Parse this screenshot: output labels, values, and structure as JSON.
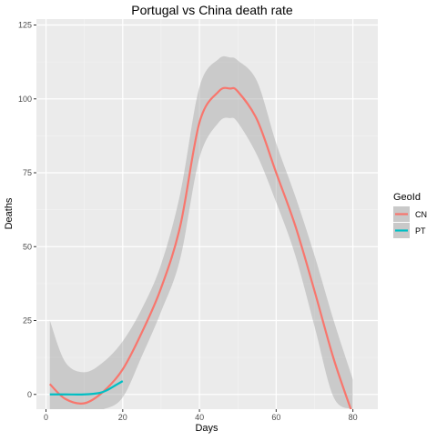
{
  "chart_data": {
    "type": "line",
    "title": "Portugal vs China death rate",
    "xlabel": "Days",
    "ylabel": "Deaths",
    "x_ticks": [
      0,
      20,
      40,
      60,
      80
    ],
    "y_ticks": [
      0,
      25,
      50,
      75,
      100,
      125
    ],
    "xlim": [
      -2.5,
      86.5
    ],
    "ylim": [
      -5,
      127
    ],
    "grid": true,
    "legend": {
      "title": "GeoId",
      "placement": "right"
    },
    "series": [
      {
        "name": "CN",
        "color": "#F8766D",
        "x": [
          1,
          5,
          10,
          15,
          20,
          25,
          30,
          35,
          40,
          45,
          48,
          50,
          55,
          60,
          65,
          70,
          75,
          80
        ],
        "y": [
          3.5,
          -1.5,
          -3,
          1,
          8.5,
          21,
          36,
          57,
          92,
          102.5,
          103.5,
          102.5,
          93,
          75,
          57,
          35,
          12,
          -7
        ],
        "band_upper": [
          25,
          11,
          7.5,
          11,
          18,
          29,
          44,
          68,
          104,
          113.5,
          114,
          113,
          106,
          85,
          67,
          47,
          25,
          5
        ],
        "band_lower": [
          -5,
          -5,
          -5,
          -5,
          -1,
          13,
          28,
          46,
          80,
          92,
          93.5,
          92,
          81,
          65,
          47,
          23,
          -1,
          -5
        ]
      },
      {
        "name": "PT",
        "color": "#00BFC4",
        "x": [
          1,
          5,
          10,
          14,
          16,
          18,
          20
        ],
        "y": [
          0,
          0,
          0,
          0.5,
          1.5,
          3,
          4.5
        ]
      }
    ]
  }
}
